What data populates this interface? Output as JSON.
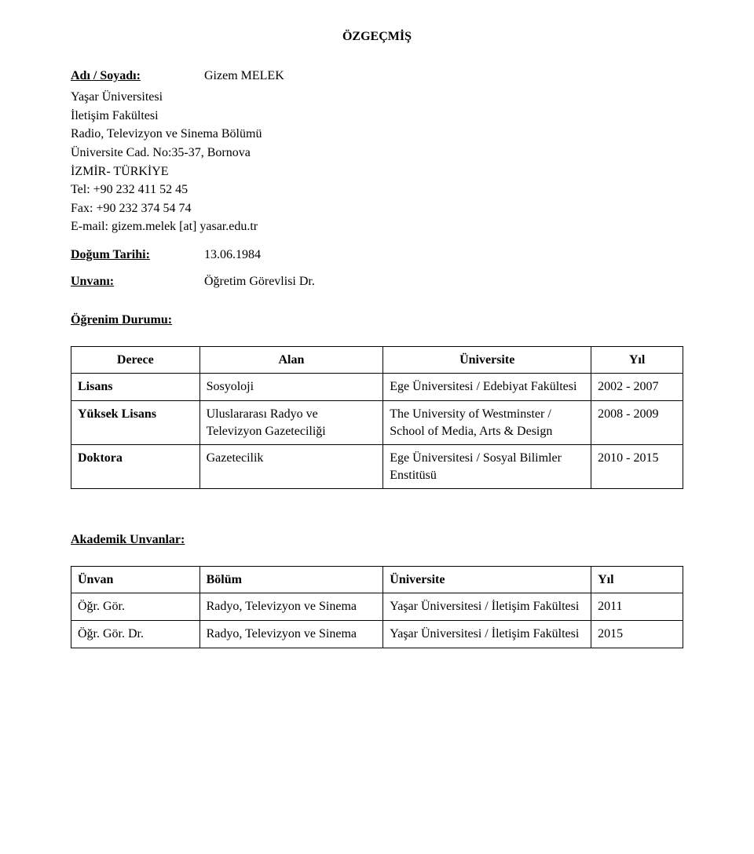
{
  "doc": {
    "title": "ÖZGEÇMİŞ",
    "name_label": "Adı / Soyadı:",
    "name_value": "Gizem MELEK",
    "address": [
      "Yaşar Üniversitesi",
      "İletişim Fakültesi",
      "Radio, Televizyon ve Sinema Bölümü",
      "Üniversite Cad. No:35-37, Bornova",
      "İZMİR- TÜRKİYE",
      "Tel: +90 232 411 52 45",
      "Fax: +90 232 374 54 74",
      "E-mail: gizem.melek [at] yasar.edu.tr"
    ],
    "dob_label": "Doğum Tarihi:",
    "dob_value": "13.06.1984",
    "title_label": "Unvanı:",
    "title_value": "Öğretim Görevlisi Dr.",
    "edu_heading": "Öğrenim Durumu:",
    "edu_headers": [
      "Derece",
      "Alan",
      "Üniversite",
      "Yıl"
    ],
    "edu_rows": [
      {
        "degree": "Lisans",
        "field": "Sosyoloji",
        "uni": "Ege Üniversitesi / Edebiyat Fakültesi",
        "year": "2002 - 2007"
      },
      {
        "degree": "Yüksek Lisans",
        "field": "Uluslararası Radyo ve Televizyon Gazeteciliği",
        "uni": "The University of Westminster / School of Media, Arts & Design",
        "year": "2008 - 2009"
      },
      {
        "degree": "Doktora",
        "field": "Gazetecilik",
        "uni": "Ege Üniversitesi / Sosyal Bilimler Enstitüsü",
        "year": "2010 - 2015"
      }
    ],
    "titles_heading": "Akademik Unvanlar:",
    "titles_headers": [
      "Ünvan",
      "Bölüm",
      "Üniversite",
      "Yıl"
    ],
    "titles_rows": [
      {
        "title": "Öğr. Gör.",
        "dept": "Radyo, Televizyon ve Sinema",
        "uni": "Yaşar Üniversitesi / İletişim Fakültesi",
        "year": "2011"
      },
      {
        "title": "Öğr. Gör. Dr.",
        "dept": "Radyo, Televizyon ve Sinema",
        "uni": "Yaşar Üniversitesi / İletişim Fakültesi",
        "year": "2015"
      }
    ]
  }
}
